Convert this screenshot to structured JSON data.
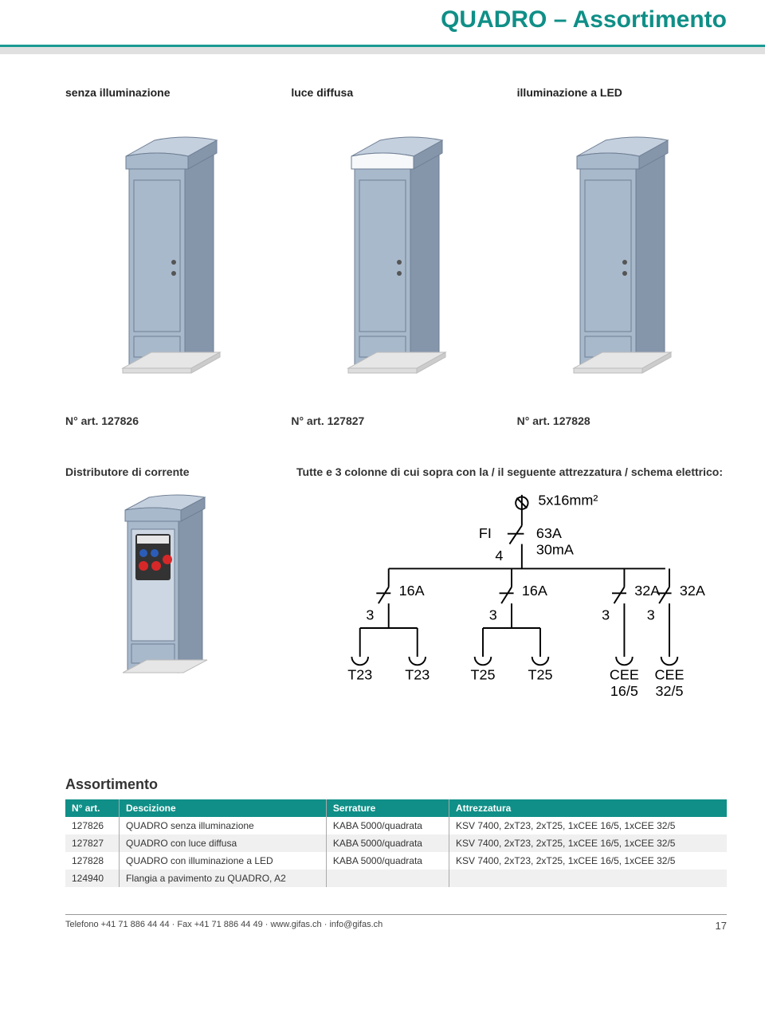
{
  "colors": {
    "teal": "#0f8f87",
    "headerRule": "#1a9b93",
    "tableHeaderBg": "#0f8f87",
    "cabinetBody": "#a9b9cc",
    "cabinetEdge": "#6f7f94",
    "cabinetDark": "#8596ab",
    "cabinetLight": "#c4d0de",
    "baseColor": "#e6e6e6",
    "panelDark": "#333333",
    "outletBlue": "#2b5db8",
    "outletRed": "#d62828"
  },
  "header": {
    "title": "QUADRO – Assortimento"
  },
  "variants": [
    {
      "label": "senza illuminazione",
      "art": "N° art. 127826",
      "topStyle": "closed"
    },
    {
      "label": "luce diffusa",
      "art": "N° art. 127827",
      "topStyle": "diffuse"
    },
    {
      "label": "illuminazione a LED",
      "art": "N° art. 127828",
      "topStyle": "led"
    }
  ],
  "middle": {
    "leftLabel": "Distributore di corrente",
    "rightLabel": "Tutte e 3 colonne di cui sopra con la / il seguente attrezzatura / schema elettrico:"
  },
  "schema": {
    "cable": "5x16mm²",
    "rcd": {
      "label": "FI",
      "rating": "63A",
      "leakage": "30mA"
    },
    "branches": [
      {
        "amp": "16A",
        "poles": "3",
        "outlets": [
          "T23",
          "T23"
        ]
      },
      {
        "amp": "16A",
        "poles": "3",
        "outlets": [
          "T25",
          "T25"
        ]
      },
      {
        "amp": "32A",
        "poles": "3",
        "outlets": [
          "CEE 16/5",
          "CEE 32/5"
        ],
        "stacked": true
      }
    ]
  },
  "tableTitle": "Assortimento",
  "table": {
    "columns": [
      "N° art.",
      "Descizione",
      "Serrature",
      "Attrezzatura"
    ],
    "rows": [
      [
        "127826",
        "QUADRO senza illuminazione",
        "KABA 5000/quadrata",
        "KSV 7400, 2xT23, 2xT25, 1xCEE 16/5, 1xCEE 32/5"
      ],
      [
        "127827",
        "QUADRO con luce diffusa",
        "KABA 5000/quadrata",
        "KSV 7400, 2xT23, 2xT25, 1xCEE 16/5, 1xCEE 32/5"
      ],
      [
        "127828",
        "QUADRO con illuminazione a LED",
        "KABA 5000/quadrata",
        "KSV 7400, 2xT23, 2xT25, 1xCEE 16/5, 1xCEE 32/5"
      ],
      [
        "124940",
        "Flangia a pavimento zu QUADRO, A2",
        "",
        ""
      ]
    ]
  },
  "footer": {
    "contact": "Telefono +41 71 886 44 44 · Fax +41 71 886 44 49 · www.gifas.ch · info@gifas.ch",
    "page": "17"
  }
}
